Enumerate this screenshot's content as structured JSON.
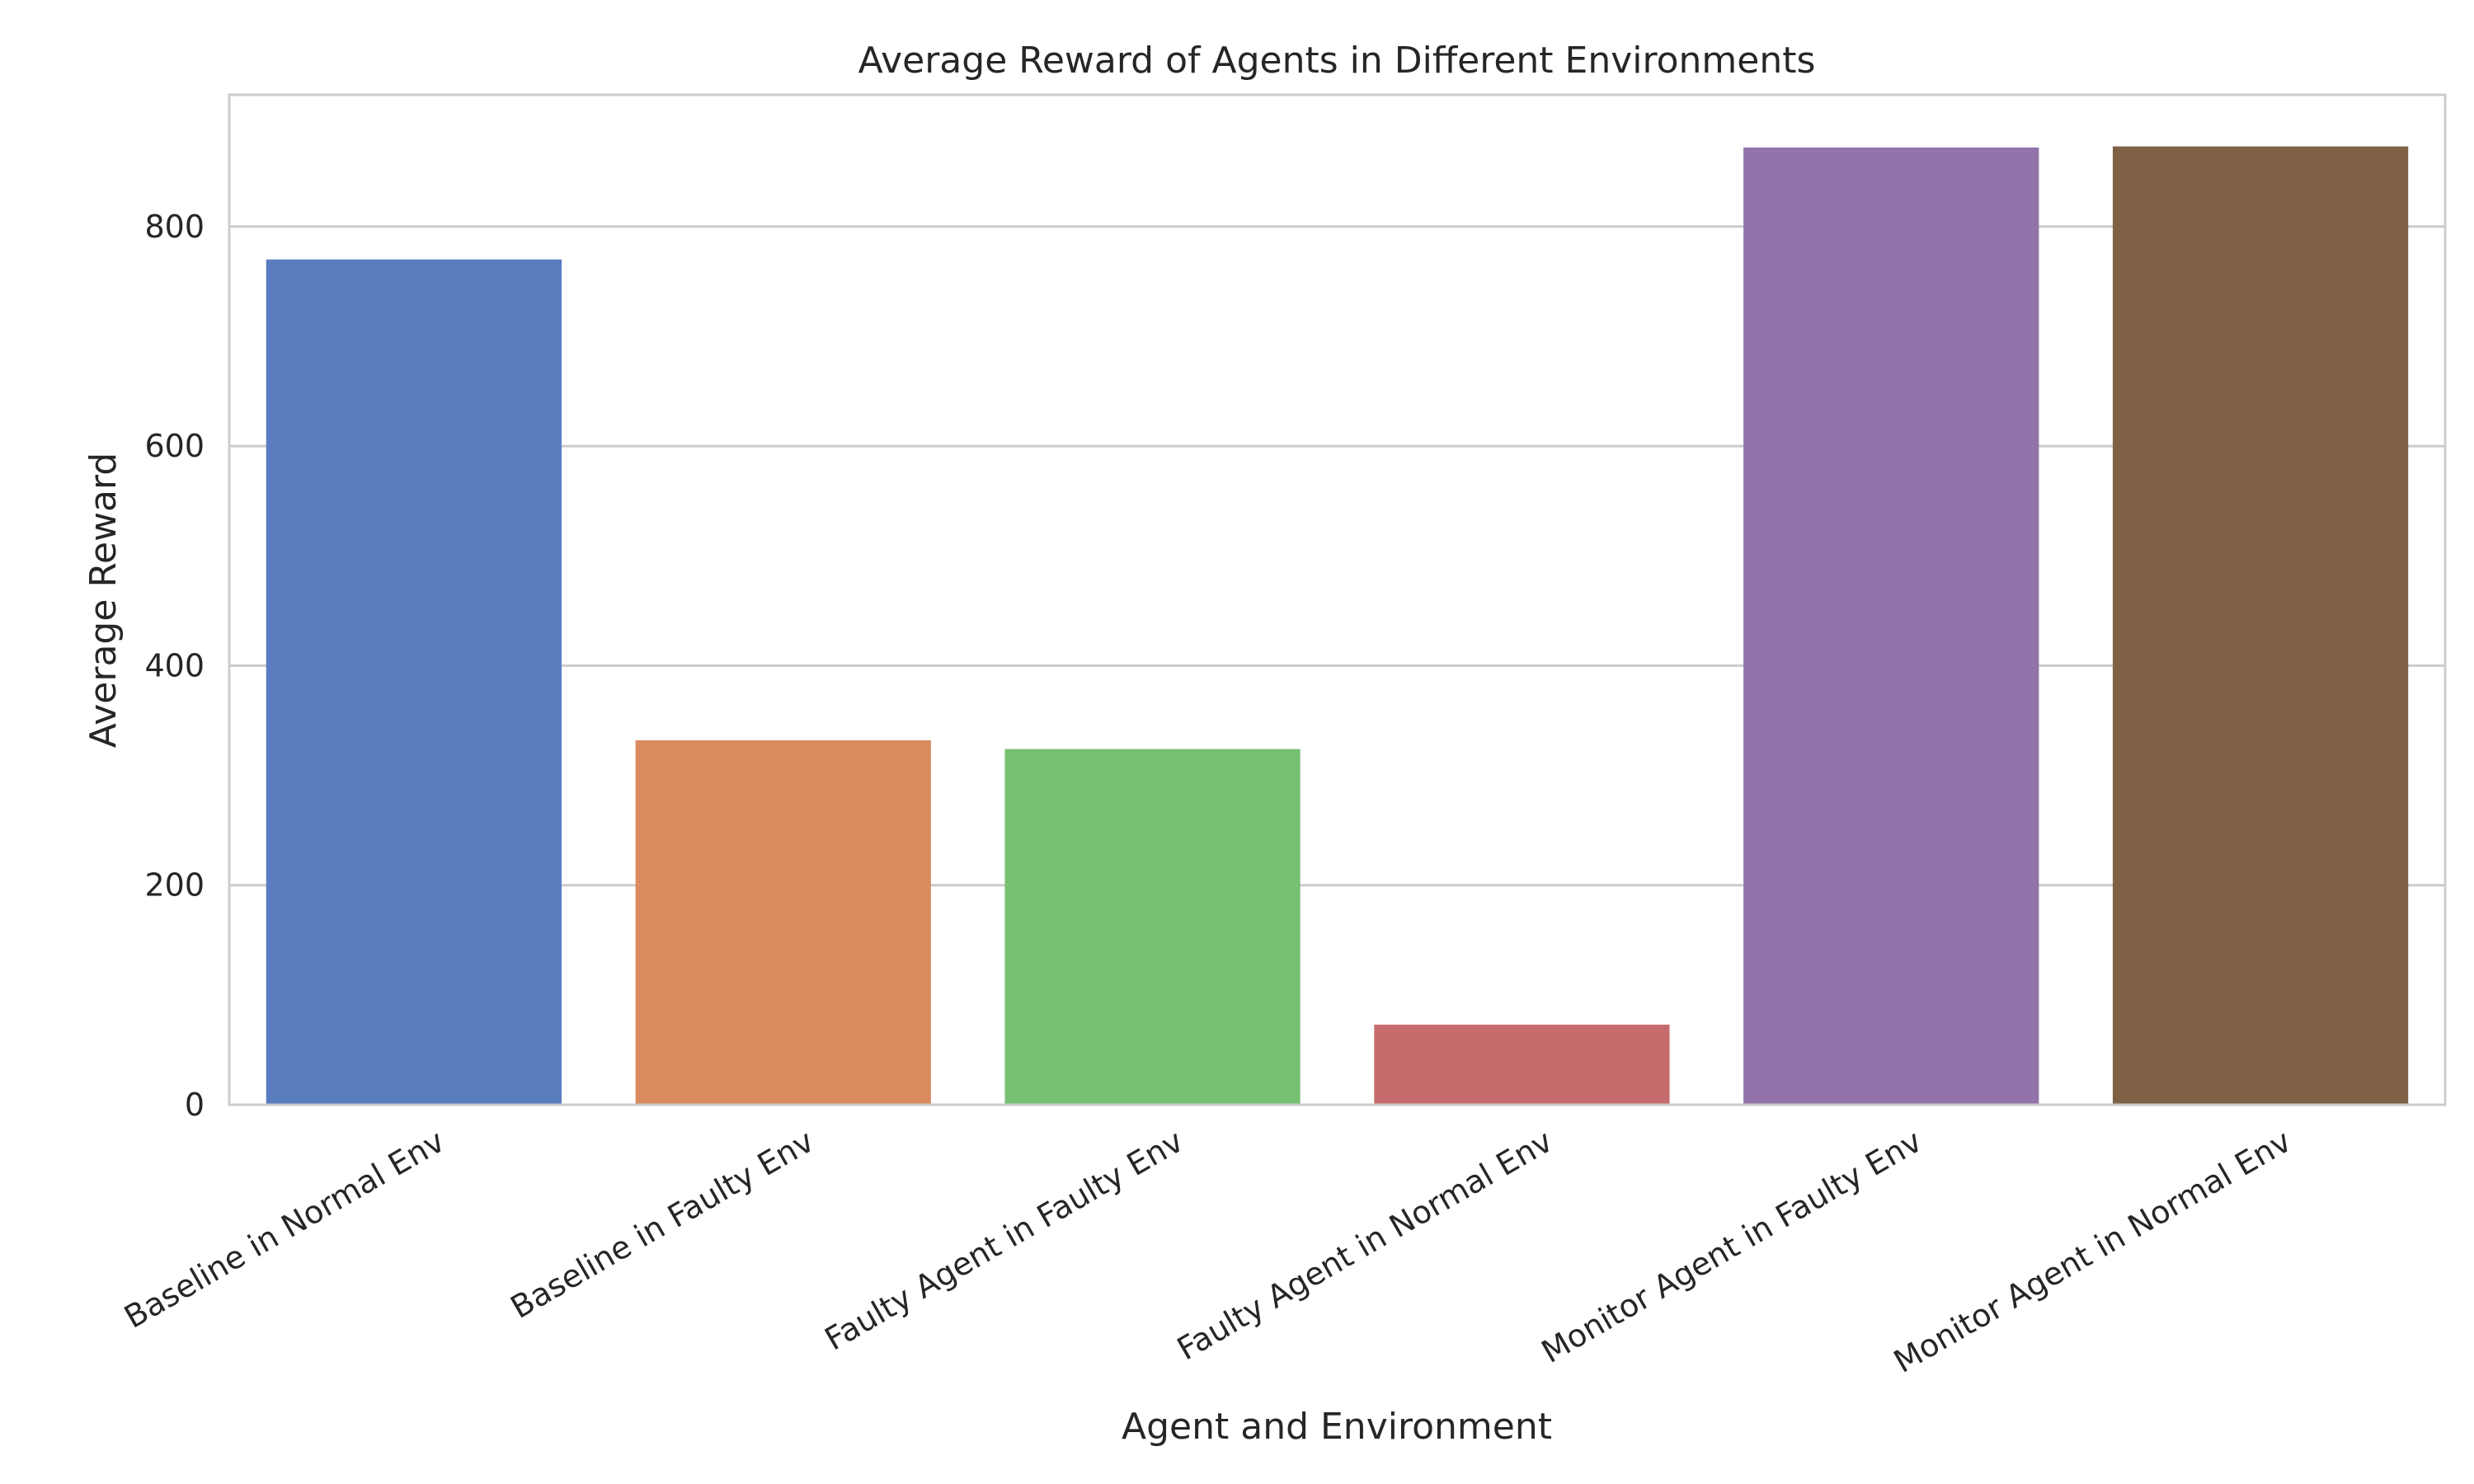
{
  "chart_data": {
    "type": "bar",
    "title": "Average Reward of Agents in Different Environments",
    "xlabel": "Agent and Environment",
    "ylabel": "Average Reward",
    "categories": [
      "Baseline in Normal Env",
      "Baseline in Faulty Env",
      "Faulty Agent in Faulty Env",
      "Faulty Agent in Normal Env",
      "Monitor Agent in Faulty Env",
      "Monitor Agent in Normal Env"
    ],
    "values": [
      770,
      332,
      324,
      73,
      872,
      873
    ],
    "colors": [
      "#5a7dbf",
      "#d98b5f",
      "#76c072",
      "#c76c6c",
      "#9274ab",
      "#7f6246"
    ],
    "ylim": [
      0,
      920
    ],
    "yticks": [
      0,
      200,
      400,
      600,
      800
    ],
    "grid": true,
    "legend": "none"
  }
}
